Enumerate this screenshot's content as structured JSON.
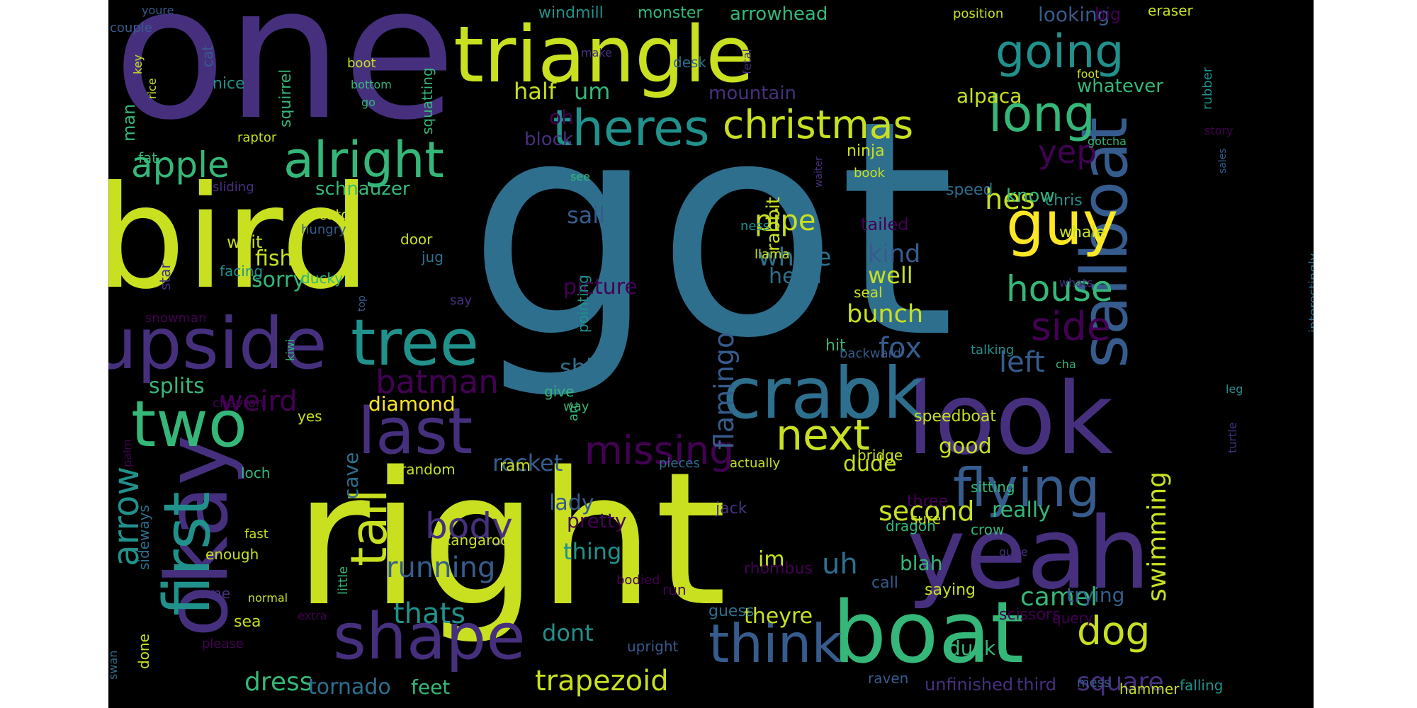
{
  "words": [
    {
      "text": "got",
      "color": "#2e6f8e"
    },
    {
      "text": "right",
      "color": "#c8e020"
    },
    {
      "text": "one",
      "color": "#46307e"
    },
    {
      "text": "bird",
      "color": "#c8e020"
    },
    {
      "text": "triangle",
      "color": "#c8e020"
    },
    {
      "text": "look",
      "color": "#46307e"
    },
    {
      "text": "yeah",
      "color": "#46307e"
    },
    {
      "text": "boat",
      "color": "#35b779"
    },
    {
      "text": "okay",
      "color": "#46307e"
    },
    {
      "text": "upside",
      "color": "#46307e"
    },
    {
      "text": "sailboat",
      "color": "#365c8d"
    },
    {
      "text": "crab",
      "color": "#2e6f8e"
    },
    {
      "text": "ok",
      "color": "#2e6f8e"
    },
    {
      "text": "last",
      "color": "#46307e"
    },
    {
      "text": "first",
      "color": "#21918c"
    },
    {
      "text": "tree",
      "color": "#21918c"
    },
    {
      "text": "shape",
      "color": "#46307e"
    },
    {
      "text": "two",
      "color": "#35b779"
    },
    {
      "text": "tall",
      "color": "#c8e020"
    },
    {
      "text": "think",
      "color": "#365c8d"
    },
    {
      "text": "flying",
      "color": "#365c8d"
    },
    {
      "text": "guy",
      "color": "#fde725"
    },
    {
      "text": "theres",
      "color": "#21918c"
    },
    {
      "text": "alright",
      "color": "#35b779"
    },
    {
      "text": "christmas",
      "color": "#c8e020"
    },
    {
      "text": "long",
      "color": "#35b779"
    },
    {
      "text": "going",
      "color": "#21918c"
    },
    {
      "text": "next",
      "color": "#c8e020"
    },
    {
      "text": "house",
      "color": "#35b779"
    },
    {
      "text": "dog",
      "color": "#c8e020"
    },
    {
      "text": "apple",
      "color": "#35b779"
    },
    {
      "text": "missing",
      "color": "#440154"
    },
    {
      "text": "side",
      "color": "#440154"
    },
    {
      "text": "arrow",
      "color": "#21918c"
    },
    {
      "text": "body",
      "color": "#46307e"
    },
    {
      "text": "trapezoid",
      "color": "#c8e020"
    },
    {
      "text": "flamingo",
      "color": "#365c8d"
    },
    {
      "text": "batman",
      "color": "#440154"
    },
    {
      "text": "yep",
      "color": "#440154"
    },
    {
      "text": "hes",
      "color": "#c8e020"
    },
    {
      "text": "fox",
      "color": "#365c8d"
    },
    {
      "text": "left",
      "color": "#365c8d"
    },
    {
      "text": "weird",
      "color": "#440154"
    },
    {
      "text": "second",
      "color": "#c8e020"
    },
    {
      "text": "swimming",
      "color": "#c8e020"
    },
    {
      "text": "running",
      "color": "#365c8d"
    },
    {
      "text": "camel",
      "color": "#35b779"
    },
    {
      "text": "square",
      "color": "#46307e"
    },
    {
      "text": "thats",
      "color": "#21918c"
    },
    {
      "text": "uh",
      "color": "#2e6f8e"
    },
    {
      "text": "dress",
      "color": "#35b779"
    },
    {
      "text": "tornado",
      "color": "#2e6f8e"
    },
    {
      "text": "feet",
      "color": "#35b779"
    },
    {
      "text": "pipe",
      "color": "#c8e020"
    },
    {
      "text": "whole",
      "color": "#2e6f8e"
    },
    {
      "text": "head",
      "color": "#2e6f8e"
    },
    {
      "text": "picture",
      "color": "#440154"
    },
    {
      "text": "bunch",
      "color": "#c8e020"
    },
    {
      "text": "kind",
      "color": "#365c8d"
    },
    {
      "text": "well",
      "color": "#c8e020"
    },
    {
      "text": "really",
      "color": "#35b779"
    },
    {
      "text": "thing",
      "color": "#21918c"
    },
    {
      "text": "lady",
      "color": "#365c8d"
    },
    {
      "text": "pretty",
      "color": "#440154"
    },
    {
      "text": "rocket",
      "color": "#365c8d"
    },
    {
      "text": "dont",
      "color": "#21918c"
    },
    {
      "text": "good",
      "color": "#c8e020"
    },
    {
      "text": "dude",
      "color": "#c8e020"
    },
    {
      "text": "im",
      "color": "#c8e020"
    },
    {
      "text": "theyre",
      "color": "#c8e020"
    },
    {
      "text": "blah",
      "color": "#35b779"
    },
    {
      "text": "trying",
      "color": "#365c8d"
    },
    {
      "text": "duck",
      "color": "#35b779"
    },
    {
      "text": "sail",
      "color": "#365c8d"
    },
    {
      "text": "ship",
      "color": "#2e6f8e"
    },
    {
      "text": "fish",
      "color": "#c8e020"
    },
    {
      "text": "sorry",
      "color": "#35b779"
    },
    {
      "text": "schnauzer",
      "color": "#35b779"
    },
    {
      "text": "diamond",
      "color": "#fde725"
    },
    {
      "text": "splits",
      "color": "#35b779"
    },
    {
      "text": "cave",
      "color": "#2e6f8e"
    },
    {
      "text": "half",
      "color": "#c8e020"
    },
    {
      "text": "um",
      "color": "#35b779"
    },
    {
      "text": "oh",
      "color": "#440154"
    },
    {
      "text": "block",
      "color": "#46307e"
    },
    {
      "text": "alpaca",
      "color": "#c8e020"
    },
    {
      "text": "whatever",
      "color": "#35b779"
    },
    {
      "text": "mountain",
      "color": "#46307e"
    },
    {
      "text": "rabbit",
      "color": "#c8e020"
    },
    {
      "text": "windmill",
      "color": "#21918c"
    },
    {
      "text": "monster",
      "color": "#35b779"
    },
    {
      "text": "arrowhead",
      "color": "#35b779"
    },
    {
      "text": "looking",
      "color": "#365c8d"
    },
    {
      "text": "big",
      "color": "#440154"
    },
    {
      "text": "eraser",
      "color": "#c8e020"
    },
    {
      "text": "position",
      "color": "#c8e020"
    },
    {
      "text": "know",
      "color": "#35b779"
    },
    {
      "text": "chris",
      "color": "#21918c"
    },
    {
      "text": "speed",
      "color": "#2e6f8e"
    },
    {
      "text": "whale",
      "color": "#c8e020"
    },
    {
      "text": "tailed",
      "color": "#440154"
    },
    {
      "text": "ness",
      "color": "#21918c"
    },
    {
      "text": "seal",
      "color": "#c8e020"
    },
    {
      "text": "ninja",
      "color": "#c8e020"
    },
    {
      "text": "book",
      "color": "#c8e020"
    },
    {
      "text": "hit",
      "color": "#35b779"
    },
    {
      "text": "backward",
      "color": "#365c8d"
    },
    {
      "text": "talking",
      "color": "#21918c"
    },
    {
      "text": "speedboat",
      "color": "#c8e020"
    },
    {
      "text": "bridge",
      "color": "#c8e020"
    },
    {
      "text": "sitting",
      "color": "#35b779"
    },
    {
      "text": "three",
      "color": "#440154"
    },
    {
      "text": "sure",
      "color": "#c8e020"
    },
    {
      "text": "crow",
      "color": "#35b779"
    },
    {
      "text": "dragon",
      "color": "#35b779"
    },
    {
      "text": "call",
      "color": "#365c8d"
    },
    {
      "text": "saying",
      "color": "#c8e020"
    },
    {
      "text": "scissors",
      "color": "#440154"
    },
    {
      "text": "query",
      "color": "#440154"
    },
    {
      "text": "raven",
      "color": "#365c8d"
    },
    {
      "text": "unfinished",
      "color": "#46307e"
    },
    {
      "text": "third",
      "color": "#46307e"
    },
    {
      "text": "mess",
      "color": "#365c8d"
    },
    {
      "text": "hammer",
      "color": "#c8e020"
    },
    {
      "text": "falling",
      "color": "#21918c"
    },
    {
      "text": "rhombus",
      "color": "#440154"
    },
    {
      "text": "guess",
      "color": "#2e6f8e"
    },
    {
      "text": "run",
      "color": "#440154"
    },
    {
      "text": "jack",
      "color": "#46307e"
    },
    {
      "text": "kangaroo",
      "color": "#c8e020"
    },
    {
      "text": "bodied",
      "color": "#440154"
    },
    {
      "text": "upright",
      "color": "#365c8d"
    },
    {
      "text": "actually",
      "color": "#c8e020"
    },
    {
      "text": "pieces",
      "color": "#2e6f8e"
    },
    {
      "text": "random",
      "color": "#c8e020"
    },
    {
      "text": "ram",
      "color": "#c8e020"
    },
    {
      "text": "loch",
      "color": "#35b779"
    },
    {
      "text": "yes",
      "color": "#c8e020"
    },
    {
      "text": "chevron",
      "color": "#440154"
    },
    {
      "text": "give",
      "color": "#35b779"
    },
    {
      "text": "way",
      "color": "#35b779"
    },
    {
      "text": "arc",
      "color": "#35b779"
    },
    {
      "text": "pointing",
      "color": "#21918c"
    },
    {
      "text": "say",
      "color": "#46307e"
    },
    {
      "text": "llama",
      "color": "#c8e020"
    },
    {
      "text": "jug",
      "color": "#2e6f8e"
    },
    {
      "text": "door",
      "color": "#c8e020"
    },
    {
      "text": "ducky",
      "color": "#35b779"
    },
    {
      "text": "hungry",
      "color": "#365c8d"
    },
    {
      "text": "catch",
      "color": "#c8e020"
    },
    {
      "text": "wait",
      "color": "#c8e020"
    },
    {
      "text": "sliding",
      "color": "#46307e"
    },
    {
      "text": "facing",
      "color": "#21918c"
    },
    {
      "text": "star",
      "color": "#46307e"
    },
    {
      "text": "raptor",
      "color": "#c8e020"
    },
    {
      "text": "squirrel",
      "color": "#35b779"
    },
    {
      "text": "squatting",
      "color": "#35b779"
    },
    {
      "text": "man",
      "color": "#35b779"
    },
    {
      "text": "fat",
      "color": "#35b779"
    },
    {
      "text": "nice",
      "color": "#21918c"
    },
    {
      "text": "cat",
      "color": "#365c8d"
    },
    {
      "text": "boot",
      "color": "#c8e020"
    },
    {
      "text": "bottom",
      "color": "#35b779"
    },
    {
      "text": "go",
      "color": "#35b779"
    },
    {
      "text": "key",
      "color": "#c8e020"
    },
    {
      "text": "rice",
      "color": "#c8e020"
    },
    {
      "text": "couple",
      "color": "#365c8d"
    },
    {
      "text": "youre",
      "color": "#365c8d"
    },
    {
      "text": "make",
      "color": "#46307e"
    },
    {
      "text": "desk",
      "color": "#2e6f8e"
    },
    {
      "text": "fetal",
      "color": "#46307e"
    },
    {
      "text": "see",
      "color": "#35b779"
    },
    {
      "text": "waiter",
      "color": "#46307e"
    },
    {
      "text": "foot",
      "color": "#c8e020"
    },
    {
      "text": "gotcha",
      "color": "#35b779"
    },
    {
      "text": "story",
      "color": "#440154"
    },
    {
      "text": "rubber",
      "color": "#21918c"
    },
    {
      "text": "sales",
      "color": "#365c8d"
    },
    {
      "text": "whats",
      "color": "#46307e"
    },
    {
      "text": "top",
      "color": "#365c8d"
    },
    {
      "text": "interestingly",
      "color": "#2e6f8e"
    },
    {
      "text": "cha",
      "color": "#35b779"
    },
    {
      "text": "leg",
      "color": "#21918c"
    },
    {
      "text": "turtle",
      "color": "#46307e"
    },
    {
      "text": "quite",
      "color": "#46307e"
    },
    {
      "text": "kiwi",
      "color": "#35b779"
    },
    {
      "text": "snowman",
      "color": "#440154"
    },
    {
      "text": "palm",
      "color": "#440154"
    },
    {
      "text": "sideways",
      "color": "#2e6f8e"
    },
    {
      "text": "done",
      "color": "#c8e020"
    },
    {
      "text": "came",
      "color": "#46307e"
    },
    {
      "text": "sea",
      "color": "#c8e020"
    },
    {
      "text": "extra",
      "color": "#440154"
    },
    {
      "text": "please",
      "color": "#440154"
    },
    {
      "text": "swan",
      "color": "#2e6f8e"
    },
    {
      "text": "fast",
      "color": "#c8e020"
    },
    {
      "text": "enough",
      "color": "#c8e020"
    },
    {
      "text": "little",
      "color": "#35b779"
    },
    {
      "text": "normal",
      "color": "#c8e020"
    }
  ]
}
